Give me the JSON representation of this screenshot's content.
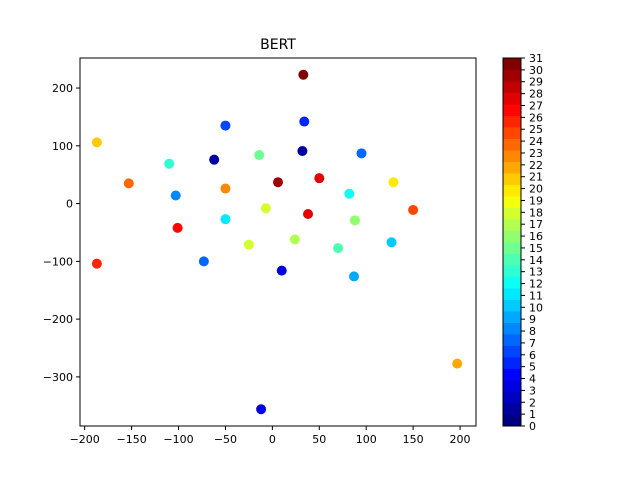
{
  "chart_data": {
    "type": "scatter",
    "title": "BERT",
    "xlabel": "",
    "ylabel": "",
    "xlim": [
      -205,
      217
    ],
    "ylim": [
      -385,
      252
    ],
    "xticks": [
      -200,
      -150,
      -100,
      -50,
      0,
      50,
      100,
      150,
      200
    ],
    "yticks": [
      -300,
      -200,
      -100,
      0,
      100,
      200
    ],
    "xtick_labels": [
      "−200",
      "−150",
      "−100",
      "−50",
      "0",
      "50",
      "100",
      "150",
      "200"
    ],
    "ytick_labels": [
      "−300",
      "−200",
      "−100",
      "0",
      "100",
      "200"
    ],
    "grid": false,
    "colormap": "jet",
    "colorbar": {
      "min": 0,
      "max": 31,
      "levels": 32,
      "tick_labels": [
        "0",
        "1",
        "2",
        "3",
        "4",
        "5",
        "6",
        "7",
        "8",
        "9",
        "10",
        "11",
        "12",
        "13",
        "14",
        "15",
        "16",
        "17",
        "18",
        "19",
        "20",
        "21",
        "22",
        "23",
        "24",
        "25",
        "26",
        "27",
        "28",
        "29",
        "30",
        "31"
      ]
    },
    "points": [
      {
        "x": 33,
        "y": 223,
        "c": 31
      },
      {
        "x": 6,
        "y": 37,
        "c": 30
      },
      {
        "x": 38,
        "y": -18,
        "c": 28
      },
      {
        "x": 50,
        "y": 44,
        "c": 28
      },
      {
        "x": -101,
        "y": -42,
        "c": 27
      },
      {
        "x": -187,
        "y": -104,
        "c": 26
      },
      {
        "x": 150,
        "y": -11,
        "c": 25
      },
      {
        "x": -153,
        "y": 35,
        "c": 24
      },
      {
        "x": -50,
        "y": 26,
        "c": 23
      },
      {
        "x": 197,
        "y": -277,
        "c": 22
      },
      {
        "x": -187,
        "y": 106,
        "c": 21
      },
      {
        "x": 129,
        "y": 37,
        "c": 20
      },
      {
        "x": -7,
        "y": -8,
        "c": 18
      },
      {
        "x": -25,
        "y": -71,
        "c": 18
      },
      {
        "x": 24,
        "y": -62,
        "c": 17
      },
      {
        "x": 88,
        "y": -29,
        "c": 16
      },
      {
        "x": -14,
        "y": 84,
        "c": 15
      },
      {
        "x": 70,
        "y": -77,
        "c": 14
      },
      {
        "x": -110,
        "y": 69,
        "c": 13
      },
      {
        "x": 82,
        "y": 17,
        "c": 12
      },
      {
        "x": -50,
        "y": -27,
        "c": 11
      },
      {
        "x": 127,
        "y": -67,
        "c": 10
      },
      {
        "x": 87,
        "y": -126,
        "c": 9
      },
      {
        "x": -103,
        "y": 14,
        "c": 8
      },
      {
        "x": 95,
        "y": 87,
        "c": 7
      },
      {
        "x": -73,
        "y": -100,
        "c": 7
      },
      {
        "x": -50,
        "y": 135,
        "c": 6
      },
      {
        "x": 34,
        "y": 142,
        "c": 5
      },
      {
        "x": 10,
        "y": -116,
        "c": 3
      },
      {
        "x": -12,
        "y": -356,
        "c": 3
      },
      {
        "x": -62,
        "y": 76,
        "c": 1
      },
      {
        "x": 32,
        "y": 91,
        "c": 1
      }
    ]
  }
}
